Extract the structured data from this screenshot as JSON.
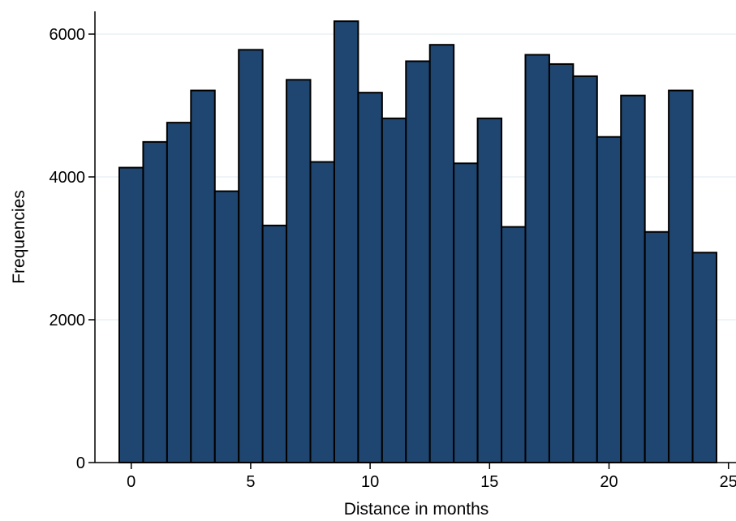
{
  "chart_data": {
    "type": "bar",
    "title": "",
    "xlabel": "Distance in months",
    "ylabel": "Frequencies",
    "x": [
      0,
      1,
      2,
      3,
      4,
      5,
      6,
      7,
      8,
      9,
      10,
      11,
      12,
      13,
      14,
      15,
      16,
      17,
      18,
      19,
      20,
      21,
      22,
      23,
      24
    ],
    "values": [
      4130,
      4490,
      4760,
      5210,
      3800,
      5780,
      3320,
      5360,
      4210,
      6180,
      5180,
      4820,
      5620,
      5850,
      4190,
      4820,
      3300,
      5710,
      5580,
      5410,
      4560,
      5140,
      3230,
      5210,
      2940
    ],
    "xlim": [
      -0.5,
      25
    ],
    "ylim": [
      0,
      6200
    ],
    "xticks": [
      0,
      5,
      10,
      15,
      20,
      25
    ],
    "yticks": [
      0,
      2000,
      4000,
      6000
    ],
    "xtick_labels": [
      "0",
      "5",
      "10",
      "15",
      "20",
      "25"
    ],
    "ytick_labels": [
      "0",
      "2000",
      "4000",
      "6000"
    ],
    "grid": true,
    "legend": "none",
    "colors": {
      "bar_fill": "#1f4670",
      "bar_stroke": "#000000",
      "grid": "#eaf2f3",
      "axis": "#000000"
    }
  }
}
